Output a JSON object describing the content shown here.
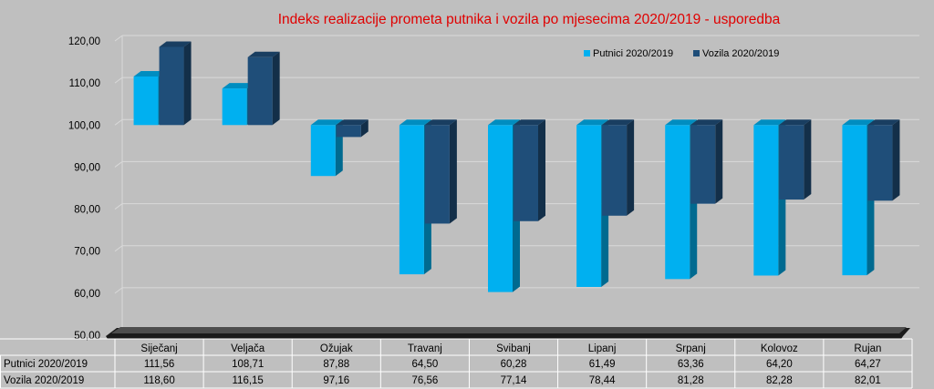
{
  "chart_data": {
    "type": "bar",
    "title": "Indeks realizacije prometa putnika i vozila po mjesecima 2020/2019 - usporedba",
    "categories": [
      "Siječanj",
      "Veljača",
      "Ožujak",
      "Travanj",
      "Svibanj",
      "Lipanj",
      "Srpanj",
      "Kolovoz",
      "Rujan"
    ],
    "baseline": 100,
    "ylim": [
      50,
      120
    ],
    "yticks": [
      "50,00",
      "60,00",
      "70,00",
      "80,00",
      "90,00",
      "100,00",
      "110,00",
      "120,00"
    ],
    "grid": true,
    "legend_position": "top-right",
    "series": [
      {
        "name": "Putnici 2020/2019",
        "color": "#00b0f0",
        "values": [
          111.56,
          108.71,
          87.88,
          64.5,
          60.28,
          61.49,
          63.36,
          64.2,
          64.27
        ],
        "labels": [
          "111,56",
          "108,71",
          "87,88",
          "64,50",
          "60,28",
          "61,49",
          "63,36",
          "64,20",
          "64,27"
        ]
      },
      {
        "name": "Vozila 2020/2019",
        "color": "#1f4e79",
        "values": [
          118.6,
          116.15,
          97.16,
          76.56,
          77.14,
          78.44,
          81.28,
          82.28,
          82.01
        ],
        "labels": [
          "118,60",
          "116,15",
          "97,16",
          "76,56",
          "77,14",
          "78,44",
          "81,28",
          "82,28",
          "82,01"
        ]
      }
    ]
  }
}
